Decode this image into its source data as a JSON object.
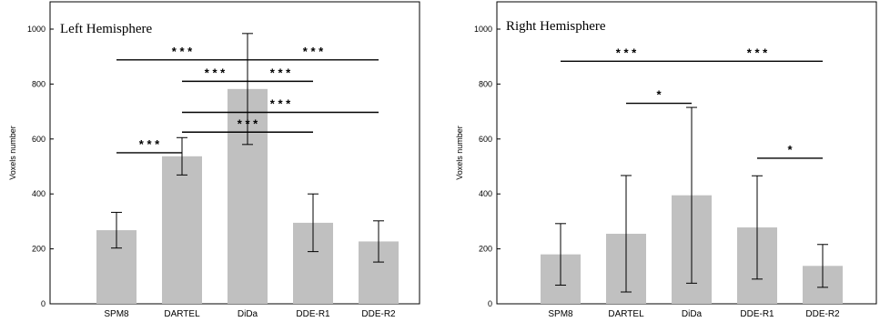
{
  "chart_data": [
    {
      "type": "bar",
      "title": "Left Hemisphere",
      "ylabel": "Voxels number",
      "xlabel": "",
      "ylim": [
        0,
        1000
      ],
      "yticks": [
        0,
        200,
        400,
        600,
        800,
        1000
      ],
      "grid": false,
      "bar_color": "#c0c0c0",
      "categories": [
        "SPM8",
        "DARTEL",
        "DiDa",
        "DDE-R1",
        "DDE-R2"
      ],
      "values": [
        268,
        537,
        782,
        295,
        227
      ],
      "errors": [
        65,
        68,
        202,
        105,
        75
      ],
      "significance": [
        {
          "from": "SPM8",
          "to": "DARTEL",
          "level": 550,
          "label": "* * *"
        },
        {
          "from": "SPM8",
          "to": "DiDa",
          "level": 888,
          "label": "* * *"
        },
        {
          "from": "DARTEL",
          "to": "DiDa",
          "level": 810,
          "label": "* * *"
        },
        {
          "from": "DiDa",
          "to": "DDE-R1",
          "level": 810,
          "label": "* * *"
        },
        {
          "from": "DiDa",
          "to": "DDE-R2",
          "level": 888,
          "label": "* * *"
        },
        {
          "from": "DARTEL",
          "to": "DDE-R2",
          "level": 697,
          "label": "* * *"
        },
        {
          "from": "DARTEL",
          "to": "DDE-R1",
          "level": 625,
          "label": "* * *"
        }
      ]
    },
    {
      "type": "bar",
      "title": "Right Hemisphere",
      "ylabel": "Voxels number",
      "xlabel": "",
      "ylim": [
        0,
        1000
      ],
      "yticks": [
        0,
        200,
        400,
        600,
        800,
        1000
      ],
      "grid": false,
      "bar_color": "#c0c0c0",
      "categories": [
        "SPM8",
        "DARTEL",
        "DiDa",
        "DDE-R1",
        "DDE-R2"
      ],
      "values": [
        180,
        255,
        395,
        278,
        138
      ],
      "errors": [
        112,
        212,
        320,
        188,
        78
      ],
      "significance": [
        {
          "from": "SPM8",
          "to": "DiDa",
          "level": 883,
          "label": "* * *"
        },
        {
          "from": "DiDa",
          "to": "DDE-R2",
          "level": 883,
          "label": "* * *"
        },
        {
          "from": "DARTEL",
          "to": "DiDa",
          "level": 730,
          "label": "*"
        },
        {
          "from": "DDE-R1",
          "to": "DDE-R2",
          "level": 530,
          "label": "*"
        }
      ]
    }
  ]
}
